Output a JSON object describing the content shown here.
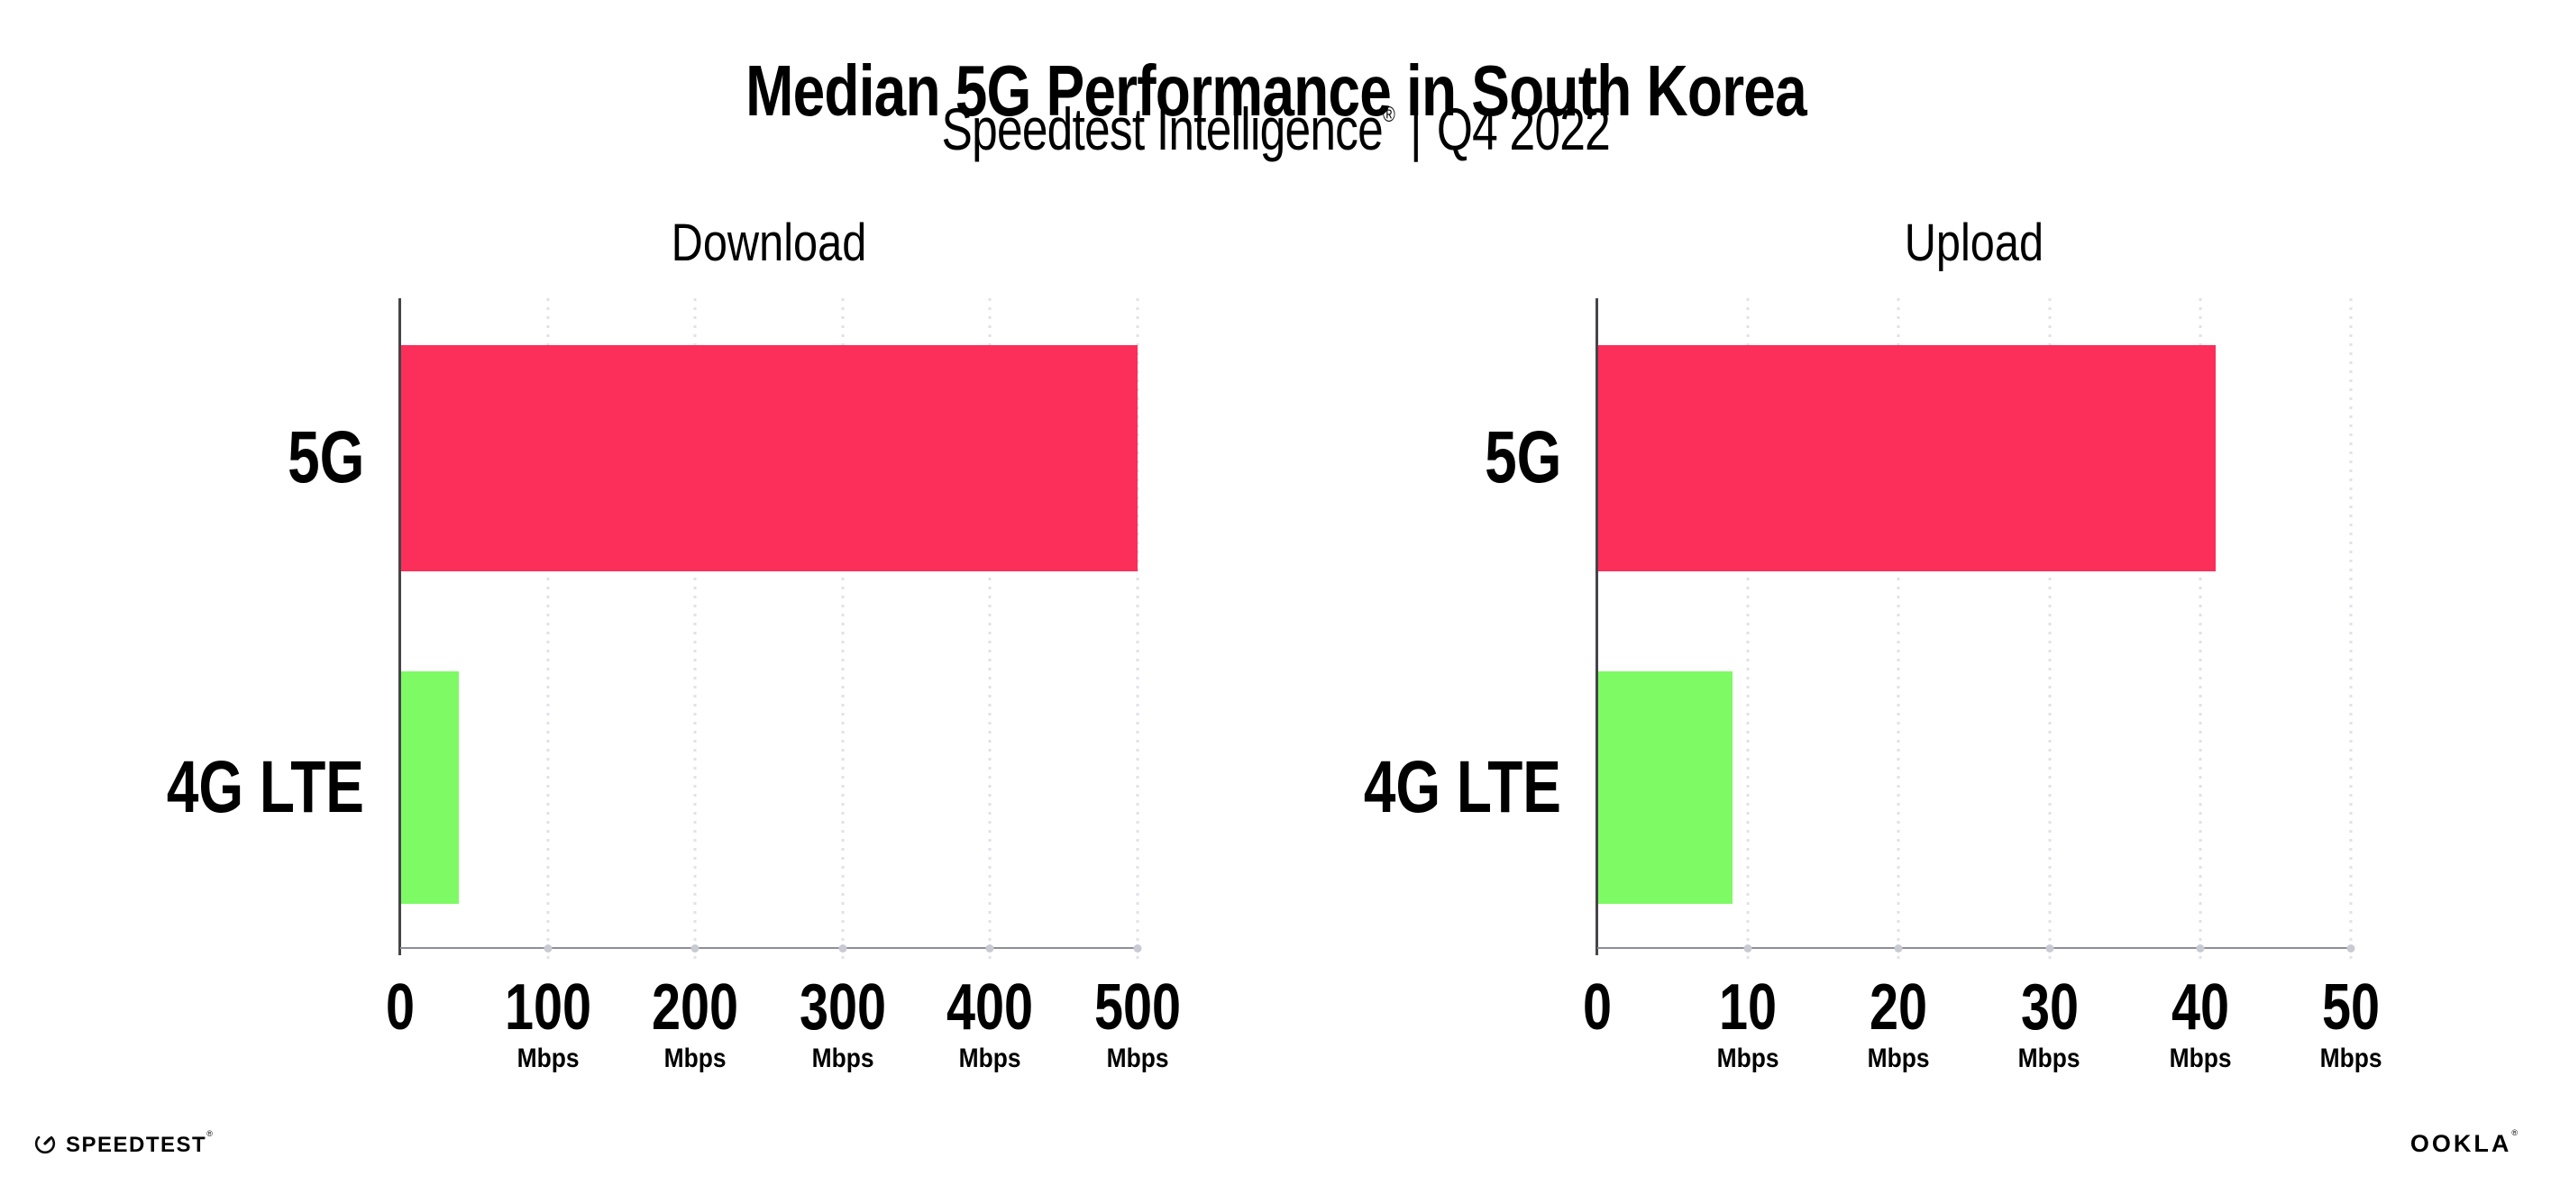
{
  "header": {
    "title": "Median 5G Performance in South Korea",
    "subtitle_brand": "Speedtest Intelligence",
    "subtitle_registered": "®",
    "subtitle_separator": "|",
    "subtitle_period": "Q4 2022"
  },
  "footer": {
    "speedtest_label": "SPEEDTEST",
    "speedtest_mark": "®",
    "speedtest_icon": "speedtest-gauge-icon",
    "ookla_label": "OOKLA",
    "ookla_mark": "®"
  },
  "colors": {
    "bar_5g": "#FC2E5A",
    "bar_4g_lte": "#7EFA64",
    "gridline": "#E0E1EB",
    "axis_line": "#8E8E96",
    "axis_spine": "#44444A",
    "tick_dot": "#C9CAD4",
    "text": "#000000"
  },
  "chart_data": [
    {
      "type": "bar",
      "orientation": "horizontal",
      "title": "Download",
      "categories": [
        "5G",
        "4G LTE"
      ],
      "values": [
        500,
        40
      ],
      "unit": "Mbps",
      "xlim": [
        0,
        500
      ],
      "xticks": [
        0,
        100,
        200,
        300,
        400,
        500
      ],
      "tick_unit_label": "Mbps",
      "tick_unit_on_zero": false,
      "grid": "vertical-dotted",
      "legend": "none",
      "bar_colors": [
        "#FC2E5A",
        "#7EFA64"
      ]
    },
    {
      "type": "bar",
      "orientation": "horizontal",
      "title": "Upload",
      "categories": [
        "5G",
        "4G LTE"
      ],
      "values": [
        41,
        9
      ],
      "unit": "Mbps",
      "xlim": [
        0,
        50
      ],
      "xticks": [
        0,
        10,
        20,
        30,
        40,
        50
      ],
      "tick_unit_label": "Mbps",
      "tick_unit_on_zero": false,
      "grid": "vertical-dotted",
      "legend": "none",
      "bar_colors": [
        "#FC2E5A",
        "#7EFA64"
      ]
    }
  ]
}
